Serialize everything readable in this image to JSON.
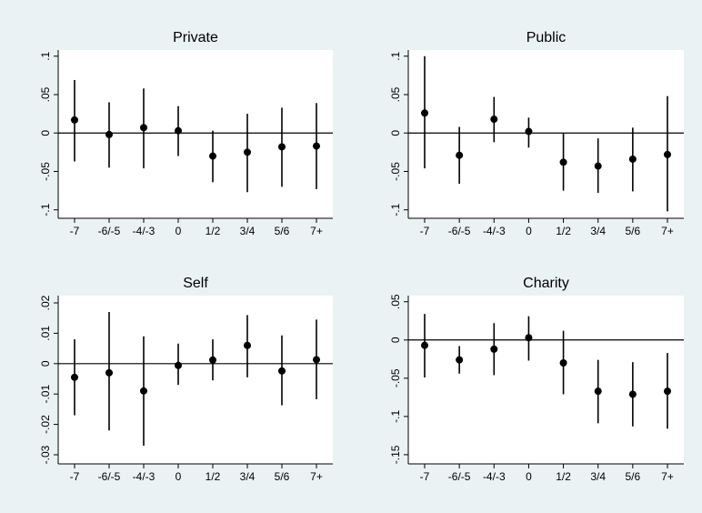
{
  "chart_data": [
    {
      "type": "errorbar",
      "title": "Private",
      "categories": [
        "-7",
        "-6/-5",
        "-4/-3",
        "0",
        "1/2",
        "3/4",
        "5/6",
        "7+"
      ],
      "values": [
        0.017,
        -0.002,
        0.007,
        0.003,
        -0.03,
        -0.025,
        -0.018,
        -0.017
      ],
      "lower": [
        -0.037,
        -0.045,
        -0.046,
        -0.03,
        -0.064,
        -0.077,
        -0.07,
        -0.073
      ],
      "upper": [
        0.069,
        0.04,
        0.058,
        0.035,
        0.003,
        0.025,
        0.033,
        0.039
      ],
      "color": "#000000",
      "hline": 0,
      "ylim": [
        -0.111,
        0.108
      ],
      "yticks": [
        {
          "value": -0.1,
          "label": "-.1"
        },
        {
          "value": -0.05,
          "label": "-.05"
        },
        0,
        {
          "value": 0.05,
          "label": ".05"
        },
        {
          "value": 0.1,
          "label": ".1"
        }
      ]
    },
    {
      "type": "errorbar",
      "title": "Public",
      "categories": [
        "-7",
        "-6/-5",
        "-4/-3",
        "0",
        "1/2",
        "3/4",
        "5/6",
        "7+"
      ],
      "values": [
        0.026,
        -0.029,
        0.018,
        0.002,
        -0.038,
        -0.043,
        -0.034,
        -0.028
      ],
      "lower": [
        -0.046,
        -0.066,
        -0.012,
        -0.019,
        -0.075,
        -0.078,
        -0.076,
        -0.102
      ],
      "upper": [
        0.1,
        0.008,
        0.047,
        0.02,
        0,
        -0.007,
        0.007,
        0.048
      ],
      "color": "#000000",
      "hline": 0,
      "ylim": [
        -0.111,
        0.108
      ],
      "yticks": [
        {
          "value": -0.1,
          "label": "-.1"
        },
        {
          "value": -0.05,
          "label": "-.05"
        },
        0,
        {
          "value": 0.05,
          "label": ".05"
        },
        {
          "value": 0.1,
          "label": ".1"
        }
      ]
    },
    {
      "type": "errorbar",
      "title": "Self",
      "categories": [
        "-7",
        "-6/-5",
        "-4/-3",
        "0",
        "1/2",
        "3/4",
        "5/6",
        "7+"
      ],
      "values": [
        -0.0045,
        -0.003,
        -0.009,
        -0.0006,
        0.0012,
        0.006,
        -0.0024,
        0.0013
      ],
      "lower": [
        -0.017,
        -0.022,
        -0.027,
        -0.007,
        -0.0055,
        -0.0045,
        -0.0137,
        -0.0117
      ],
      "upper": [
        0.008,
        0.017,
        0.009,
        0.0066,
        0.008,
        0.016,
        0.0093,
        0.0145
      ],
      "color": "#000000",
      "hline": 0,
      "ylim": [
        -0.033,
        0.0224
      ],
      "yticks": [
        {
          "value": -0.03,
          "label": "-.03"
        },
        {
          "value": -0.02,
          "label": "-.02"
        },
        {
          "value": -0.01,
          "label": "-.01"
        },
        0,
        {
          "value": 0.01,
          "label": ".01"
        },
        {
          "value": 0.02,
          "label": ".02"
        }
      ]
    },
    {
      "type": "errorbar",
      "title": "Charity",
      "categories": [
        "-7",
        "-6/-5",
        "-4/-3",
        "0",
        "1/2",
        "3/4",
        "5/6",
        "7+"
      ],
      "values": [
        -0.007,
        -0.026,
        -0.012,
        0.003,
        -0.03,
        -0.067,
        -0.071,
        -0.067
      ],
      "lower": [
        -0.049,
        -0.044,
        -0.046,
        -0.027,
        -0.071,
        -0.109,
        -0.113,
        -0.116
      ],
      "upper": [
        0.034,
        -0.008,
        0.022,
        0.031,
        0.012,
        -0.026,
        -0.029,
        -0.017
      ],
      "color": "#000000",
      "hline": 0,
      "ylim": [
        -0.162,
        0.058
      ],
      "yticks": [
        {
          "value": -0.15,
          "label": "-.15"
        },
        {
          "value": -0.1,
          "label": "-.1"
        },
        {
          "value": -0.05,
          "label": "-.05"
        },
        0,
        {
          "value": 0.05,
          "label": ".05"
        }
      ]
    }
  ]
}
